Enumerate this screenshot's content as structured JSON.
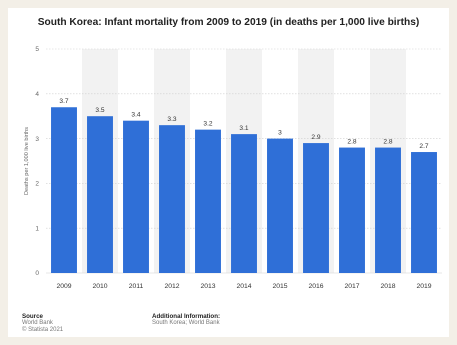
{
  "page": {
    "background": "#f3efe7"
  },
  "chart_data": {
    "type": "bar",
    "title": "South Korea: Infant mortality from 2009 to 2019 (in deaths per 1,000 live births)",
    "xlabel": "",
    "ylabel": "Deaths per 1,000 live births",
    "categories": [
      "2009",
      "2010",
      "2011",
      "2012",
      "2013",
      "2014",
      "2015",
      "2016",
      "2017",
      "2018",
      "2019"
    ],
    "values": [
      3.7,
      3.5,
      3.4,
      3.3,
      3.2,
      3.1,
      3,
      2.9,
      2.8,
      2.8,
      2.7
    ],
    "value_labels": [
      "3.7",
      "3.5",
      "3.4",
      "3.3",
      "3.2",
      "3.1",
      "3",
      "2.9",
      "2.8",
      "2.8",
      "2.7"
    ],
    "ylim": [
      0,
      5
    ],
    "yticks": [
      0,
      1,
      2,
      3,
      4,
      5
    ],
    "grid": true,
    "bar_color": "#2f6fd7"
  },
  "footer": {
    "source_heading": "Source",
    "source_lines": [
      "World Bank",
      "© Statista 2021"
    ],
    "info_heading": "Additional Information:",
    "info_lines": [
      "South Korea; World Bank"
    ]
  }
}
